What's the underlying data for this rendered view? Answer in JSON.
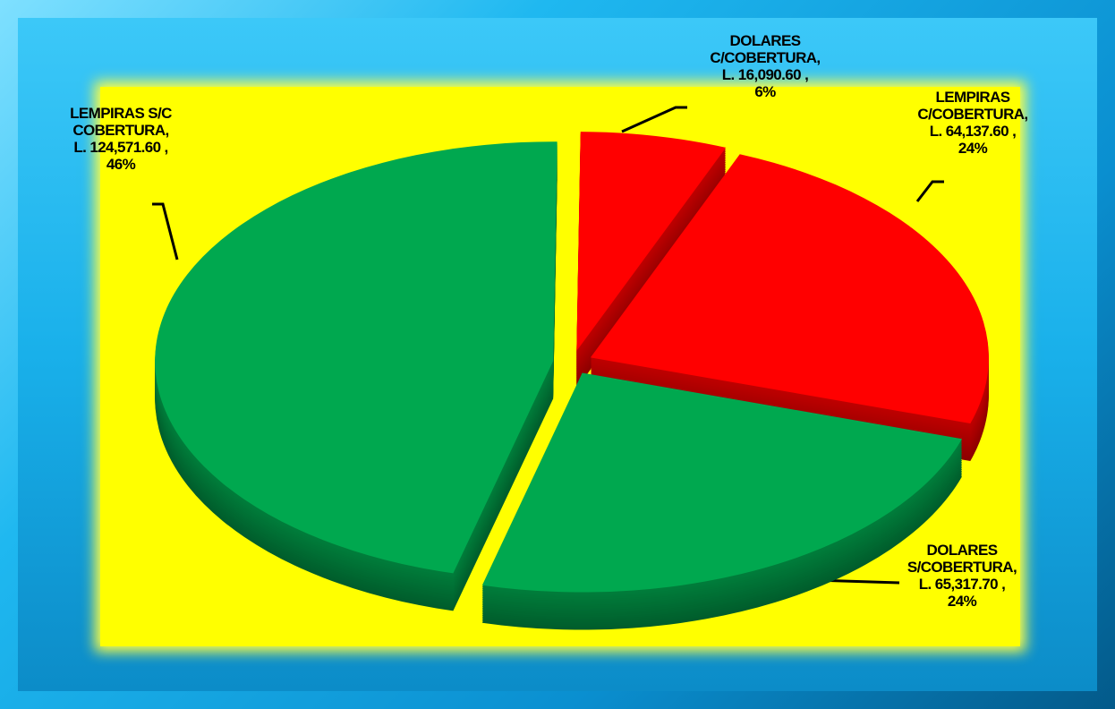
{
  "chart_data": {
    "type": "pie3d",
    "categories": [
      "DOLARES C/COBERTURA,",
      "LEMPIRAS C/COBERTURA,",
      "DOLARES S/COBERTURA,",
      "LEMPIRAS  S/C COBERTURA,"
    ],
    "values": [
      16090.6,
      64137.6,
      65317.7,
      124571.6
    ],
    "value_labels": [
      "L. 16,090.60 , 6%",
      "L. 64,137.60 , 24%",
      "L. 65,317.70 , 24%",
      "L. 124,571.60 , 46%"
    ],
    "colors": [
      "#ff0000",
      "#ff0000",
      "#00a84f",
      "#00a84f"
    ]
  }
}
